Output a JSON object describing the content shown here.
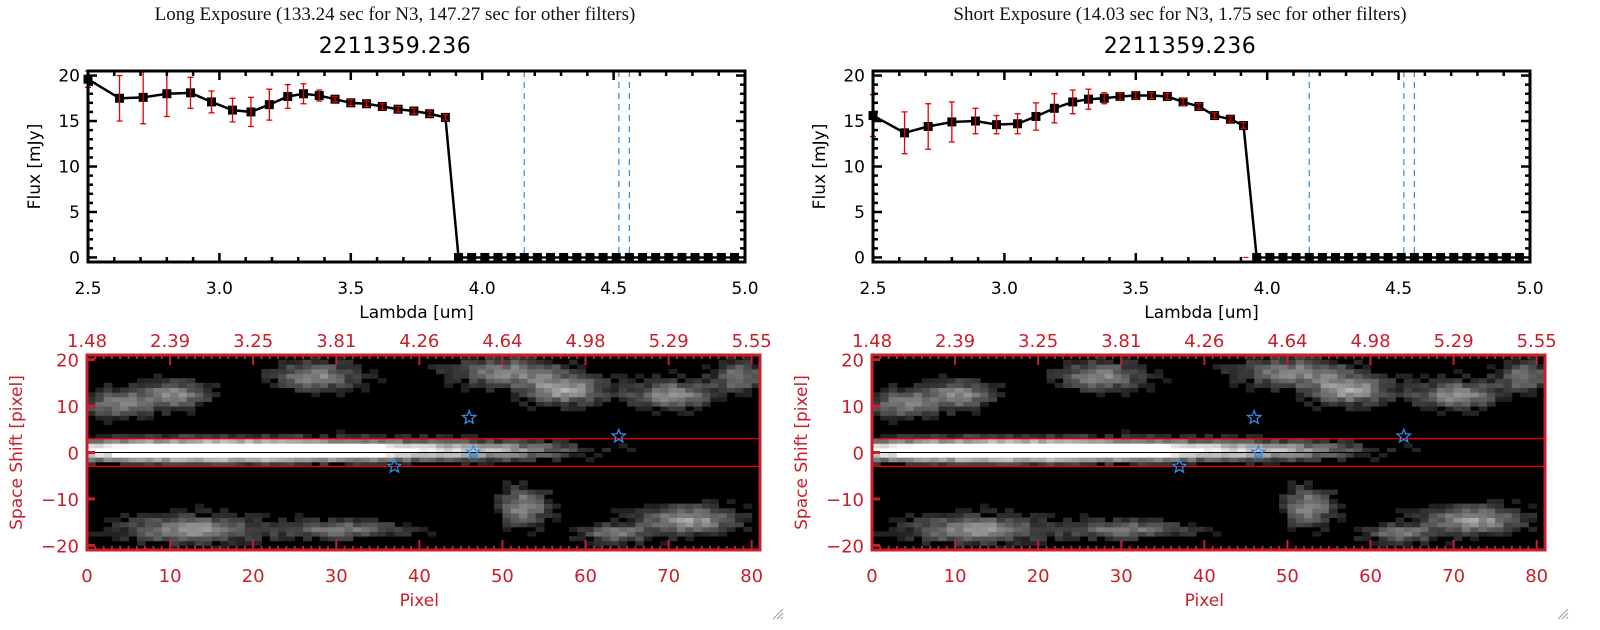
{
  "panels": [
    {
      "id": "long",
      "exposure_title": "Long Exposure (133.24 sec for N3, 147.27 sec for other filters)",
      "object_id": "2211359.236"
    },
    {
      "id": "short",
      "exposure_title": "Short Exposure (14.03 sec for N3, 1.75 sec for other filters)",
      "object_id": "2211359.236"
    }
  ],
  "colors": {
    "line": "#000000",
    "errorbar": "#e00000",
    "filter_lines": "#2e8fe6",
    "zero_line": "#e00000",
    "image_axes": "#c8202a",
    "stars": "#2e8fe6"
  },
  "chart_data": [
    {
      "type": "line",
      "panel": "long",
      "title": "2211359.236",
      "xlabel": "Lambda [um]",
      "ylabel": "Flux [mJy]",
      "xlim": [
        2.5,
        5.0
      ],
      "ylim": [
        -0.5,
        20.5
      ],
      "xticks": [
        "2.5",
        "3.0",
        "3.5",
        "4.0",
        "4.5",
        "5.0"
      ],
      "xtick_values": [
        2.5,
        3.0,
        3.5,
        4.0,
        4.5,
        5.0
      ],
      "yticks": [
        "0",
        "5",
        "10",
        "15",
        "20"
      ],
      "ytick_values": [
        0,
        5,
        10,
        15,
        20
      ],
      "vlines": [
        4.16,
        4.52,
        4.56
      ],
      "series": [
        {
          "name": "flux",
          "x": [
            2.5,
            2.62,
            2.71,
            2.8,
            2.89,
            2.97,
            3.05,
            3.12,
            3.19,
            3.26,
            3.32,
            3.38,
            3.44,
            3.5,
            3.56,
            3.62,
            3.68,
            3.74,
            3.8,
            3.86,
            3.91,
            3.96,
            4.01,
            4.06,
            4.11,
            4.16,
            4.21,
            4.26,
            4.31,
            4.36,
            4.41,
            4.46,
            4.51,
            4.56,
            4.61,
            4.66,
            4.71,
            4.76,
            4.81,
            4.86,
            4.91,
            4.96
          ],
          "y": [
            19.6,
            17.5,
            17.6,
            18.0,
            18.1,
            17.1,
            16.2,
            16.0,
            16.8,
            17.7,
            18.0,
            17.8,
            17.4,
            17.0,
            16.9,
            16.6,
            16.3,
            16.1,
            15.8,
            15.4,
            0,
            0,
            0,
            0,
            0,
            0,
            0,
            0,
            0,
            0,
            0,
            0,
            0,
            0,
            0,
            0,
            0,
            0,
            0,
            0,
            0,
            0
          ],
          "err": [
            0.9,
            2.5,
            2.9,
            2.5,
            1.7,
            1.2,
            1.3,
            1.6,
            1.7,
            1.3,
            1.1,
            0.6,
            0.3,
            0.3,
            0.3,
            0.3,
            0.3,
            0.3,
            0.3,
            0.3,
            0,
            0,
            0,
            0,
            0,
            0,
            0,
            0,
            0,
            0,
            0,
            0,
            0,
            0,
            0,
            0,
            0,
            0,
            0,
            0,
            0,
            0
          ]
        }
      ]
    },
    {
      "type": "line",
      "panel": "short",
      "title": "2211359.236",
      "xlabel": "Lambda [um]",
      "ylabel": "Flux [mJy]",
      "xlim": [
        2.5,
        5.0
      ],
      "ylim": [
        -0.5,
        20.5
      ],
      "xticks": [
        "2.5",
        "3.0",
        "3.5",
        "4.0",
        "4.5",
        "5.0"
      ],
      "xtick_values": [
        2.5,
        3.0,
        3.5,
        4.0,
        4.5,
        5.0
      ],
      "yticks": [
        "0",
        "5",
        "10",
        "15",
        "20"
      ],
      "ytick_values": [
        0,
        5,
        10,
        15,
        20
      ],
      "vlines": [
        4.16,
        4.52,
        4.56
      ],
      "series": [
        {
          "name": "flux",
          "x": [
            2.5,
            2.62,
            2.71,
            2.8,
            2.89,
            2.97,
            3.05,
            3.12,
            3.19,
            3.26,
            3.32,
            3.38,
            3.44,
            3.5,
            3.56,
            3.62,
            3.68,
            3.74,
            3.8,
            3.86,
            3.91,
            3.96,
            4.01,
            4.06,
            4.11,
            4.16,
            4.21,
            4.26,
            4.31,
            4.36,
            4.41,
            4.46,
            4.51,
            4.56,
            4.61,
            4.66,
            4.71,
            4.76,
            4.81,
            4.86,
            4.91,
            4.96
          ],
          "y": [
            15.6,
            13.7,
            14.4,
            14.9,
            15.0,
            14.6,
            14.7,
            15.5,
            16.4,
            17.1,
            17.4,
            17.5,
            17.7,
            17.8,
            17.8,
            17.7,
            17.1,
            16.6,
            15.6,
            15.2,
            14.5,
            0,
            0,
            0,
            0,
            0,
            0,
            0,
            0,
            0,
            0,
            0,
            0,
            0,
            0,
            0,
            0,
            0,
            0,
            0,
            0,
            0
          ],
          "err": [
            2.3,
            2.3,
            2.5,
            2.2,
            1.4,
            1.0,
            1.1,
            1.5,
            1.6,
            1.3,
            1.1,
            0.6,
            0.4,
            0.4,
            0.3,
            0.3,
            0.4,
            0.3,
            0.3,
            0.3,
            0.3,
            0,
            0,
            0,
            0,
            0,
            0,
            0,
            0,
            0,
            0,
            0,
            0,
            0,
            0,
            0,
            0,
            0,
            0,
            0,
            0,
            0
          ]
        }
      ]
    },
    {
      "type": "heatmap",
      "panel": "long",
      "xlabel": "Pixel",
      "ylabel": "Space Shift [pixel]",
      "xlim": [
        0,
        81
      ],
      "ylim": [
        -21,
        21
      ],
      "xticks": [
        "0",
        "10",
        "20",
        "30",
        "40",
        "50",
        "60",
        "70",
        "80"
      ],
      "xtick_values": [
        0,
        10,
        20,
        30,
        40,
        50,
        60,
        70,
        80
      ],
      "yticks": [
        "-20",
        "-10",
        "0",
        "10",
        "20"
      ],
      "ytick_values": [
        -20,
        -10,
        0,
        10,
        20
      ],
      "top_ticks": [
        "1.48",
        "2.39",
        "3.25",
        "3.81",
        "4.26",
        "4.64",
        "4.98",
        "5.29",
        "5.55"
      ],
      "aperture_lines": [
        3,
        -3
      ],
      "center_line": 0,
      "stars": [
        [
          37,
          -3
        ],
        [
          46,
          7.5
        ],
        [
          46.5,
          0
        ],
        [
          64,
          3.5
        ]
      ]
    },
    {
      "type": "heatmap",
      "panel": "short",
      "xlabel": "Pixel",
      "ylabel": "Space Shift [pixel]",
      "xlim": [
        0,
        81
      ],
      "ylim": [
        -21,
        21
      ],
      "xticks": [
        "0",
        "10",
        "20",
        "30",
        "40",
        "50",
        "60",
        "70",
        "80"
      ],
      "xtick_values": [
        0,
        10,
        20,
        30,
        40,
        50,
        60,
        70,
        80
      ],
      "yticks": [
        "-20",
        "-10",
        "0",
        "10",
        "20"
      ],
      "ytick_values": [
        -20,
        -10,
        0,
        10,
        20
      ],
      "top_ticks": [
        "1.48",
        "2.39",
        "3.25",
        "3.81",
        "4.26",
        "4.64",
        "4.98",
        "5.29",
        "5.55"
      ],
      "aperture_lines": [
        3,
        -3
      ],
      "center_line": 0,
      "stars": [
        [
          37,
          -3
        ],
        [
          46,
          7.5
        ],
        [
          46.5,
          0
        ],
        [
          64,
          3.5
        ]
      ]
    }
  ]
}
